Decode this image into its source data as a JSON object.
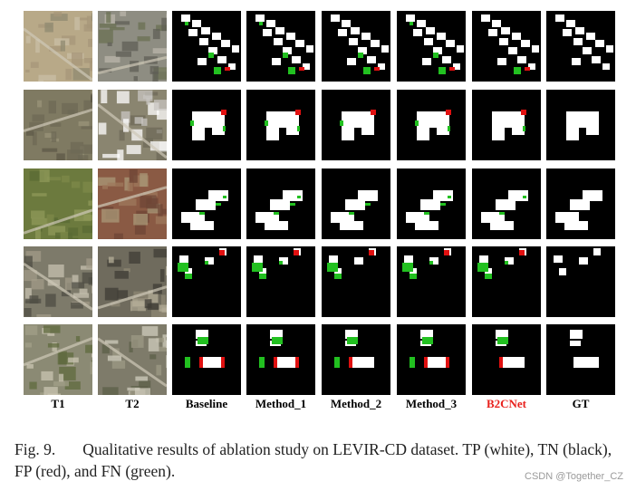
{
  "figure": {
    "columns": [
      {
        "key": "t1",
        "label": "T1",
        "kind": "image"
      },
      {
        "key": "t2",
        "label": "T2",
        "kind": "image"
      },
      {
        "key": "baseline",
        "label": "Baseline",
        "kind": "map"
      },
      {
        "key": "method1",
        "label": "Method_1",
        "kind": "map"
      },
      {
        "key": "method2",
        "label": "Method_2",
        "kind": "map"
      },
      {
        "key": "method3",
        "label": "Method_3",
        "kind": "map"
      },
      {
        "key": "b2cnet",
        "label": "B2CNet",
        "kind": "map",
        "highlight_color": "#e8201c"
      },
      {
        "key": "gt",
        "label": "GT",
        "kind": "map"
      }
    ],
    "rows": [
      {
        "scene": "residential-rows",
        "t1_tone": "dirt",
        "t2_tone": "houses"
      },
      {
        "scene": "large-building",
        "t1_tone": "scrub",
        "t2_tone": "industrial"
      },
      {
        "scene": "twin-slabs",
        "t1_tone": "field",
        "t2_tone": "roofs"
      },
      {
        "scene": "scattered-houses",
        "t1_tone": "suburb",
        "t2_tone": "suburb2"
      },
      {
        "scene": "blocks",
        "t1_tone": "yard",
        "t2_tone": "yard2"
      }
    ],
    "legend_colors": {
      "tp": "#ffffff",
      "tn": "#000000",
      "fp": "#e01010",
      "fn": "#22c020"
    }
  },
  "caption": {
    "number": "Fig. 9.",
    "text": "Qualitative results of ablation study on LEVIR-CD dataset. TP (white), TN (black), FP (red), and FN (green)."
  },
  "watermark": "CSDN @Together_CZ"
}
